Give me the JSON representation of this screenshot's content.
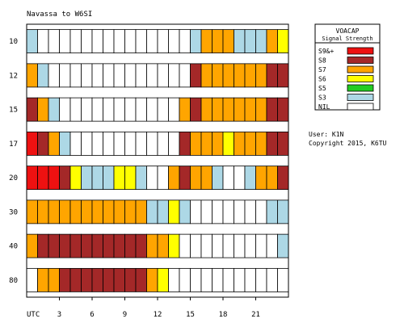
{
  "chart_data": {
    "type": "heatmap",
    "title": "Navassa to W6SI",
    "x_axis_label": "UTC",
    "x_tick_labels": [
      {
        "hour": 3,
        "label": "3"
      },
      {
        "hour": 6,
        "label": "6"
      },
      {
        "hour": 9,
        "label": "9"
      },
      {
        "hour": 12,
        "label": "12"
      },
      {
        "hour": 15,
        "label": "15"
      },
      {
        "hour": 18,
        "label": "18"
      },
      {
        "hour": 21,
        "label": "21"
      }
    ],
    "hours": [
      0,
      1,
      2,
      3,
      4,
      5,
      6,
      7,
      8,
      9,
      10,
      11,
      12,
      13,
      14,
      15,
      16,
      17,
      18,
      19,
      20,
      21,
      22,
      23
    ],
    "levels": [
      "S9&+",
      "S8",
      "S7",
      "S6",
      "S5",
      "S3",
      "NIL",
      "none"
    ],
    "colors": {
      "S9&+": "#ee1111",
      "S8": "#a42828",
      "S7": "#ffa500",
      "S6": "#ffff00",
      "S5": "#22cc22",
      "S3": "#add8e6",
      "NIL": "#ffffff",
      "none": "#ffffff"
    },
    "bands": [
      {
        "band": "10",
        "values": [
          "S3",
          "NIL",
          "NIL",
          "NIL",
          "NIL",
          "NIL",
          "NIL",
          "NIL",
          "NIL",
          "NIL",
          "NIL",
          "NIL",
          "NIL",
          "NIL",
          "NIL",
          "S3",
          "S7",
          "S7",
          "S7",
          "S3",
          "S3",
          "S3",
          "S7",
          "S6"
        ]
      },
      {
        "band": "12",
        "values": [
          "S7",
          "S3",
          "NIL",
          "NIL",
          "NIL",
          "NIL",
          "NIL",
          "NIL",
          "NIL",
          "NIL",
          "NIL",
          "NIL",
          "NIL",
          "NIL",
          "NIL",
          "S8",
          "S7",
          "S7",
          "S7",
          "S7",
          "S7",
          "S7",
          "S8",
          "S8"
        ]
      },
      {
        "band": "15",
        "values": [
          "S8",
          "S7",
          "S3",
          "NIL",
          "NIL",
          "NIL",
          "NIL",
          "NIL",
          "NIL",
          "NIL",
          "NIL",
          "NIL",
          "NIL",
          "NIL",
          "S7",
          "S8",
          "S7",
          "S7",
          "S7",
          "S7",
          "S7",
          "S7",
          "S8",
          "S8"
        ]
      },
      {
        "band": "17",
        "values": [
          "S9&+",
          "S8",
          "S7",
          "S3",
          "NIL",
          "NIL",
          "NIL",
          "NIL",
          "NIL",
          "NIL",
          "NIL",
          "NIL",
          "NIL",
          "NIL",
          "S8",
          "S7",
          "S7",
          "S7",
          "S6",
          "S7",
          "S7",
          "S7",
          "S8",
          "S8"
        ]
      },
      {
        "band": "20",
        "values": [
          "S9&+",
          "S9&+",
          "S9&+",
          "S8",
          "S6",
          "S3",
          "S3",
          "S3",
          "S6",
          "S6",
          "S3",
          "NIL",
          "NIL",
          "S7",
          "S8",
          "S7",
          "S7",
          "S3",
          "NIL",
          "NIL",
          "S3",
          "S7",
          "S7",
          "S8"
        ]
      },
      {
        "band": "30",
        "values": [
          "S7",
          "S7",
          "S7",
          "S7",
          "S7",
          "S7",
          "S7",
          "S7",
          "S7",
          "S7",
          "S7",
          "S3",
          "S3",
          "S6",
          "S3",
          "NIL",
          "NIL",
          "NIL",
          "NIL",
          "NIL",
          "NIL",
          "NIL",
          "S3",
          "S3"
        ]
      },
      {
        "band": "40",
        "values": [
          "S7",
          "S8",
          "S8",
          "S8",
          "S8",
          "S8",
          "S8",
          "S8",
          "S8",
          "S8",
          "S8",
          "S7",
          "S7",
          "S6",
          "NIL",
          "NIL",
          "NIL",
          "NIL",
          "NIL",
          "NIL",
          "NIL",
          "NIL",
          "NIL",
          "S3"
        ]
      },
      {
        "band": "80",
        "values": [
          "none",
          "S7",
          "S7",
          "S8",
          "S8",
          "S8",
          "S8",
          "S8",
          "S8",
          "S8",
          "S8",
          "S7",
          "S6",
          "NIL",
          "NIL",
          "NIL",
          "NIL",
          "NIL",
          "NIL",
          "NIL",
          "NIL",
          "NIL",
          "NIL",
          "none"
        ]
      }
    ],
    "legend": {
      "title_line1": "VOACAP",
      "title_line2": "Signal Strength",
      "position": "right",
      "entries": [
        {
          "label": "S9&+",
          "level": "S9&+"
        },
        {
          "label": "S8",
          "level": "S8"
        },
        {
          "label": "S7",
          "level": "S7"
        },
        {
          "label": "S6",
          "level": "S6"
        },
        {
          "label": "S5",
          "level": "S5"
        },
        {
          "label": "S3",
          "level": "S3"
        },
        {
          "label": "NIL",
          "level": "NIL"
        }
      ]
    },
    "user_text": "User: K1N",
    "copyright_text": "Copyright 2015, K6TU"
  }
}
